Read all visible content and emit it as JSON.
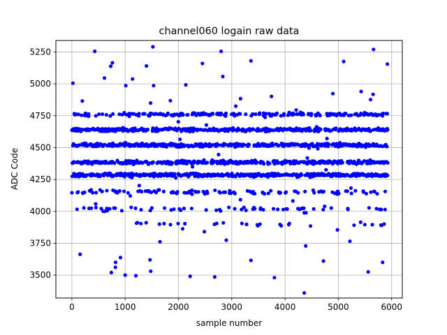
{
  "chart_data": {
    "type": "scatter",
    "title": "channel060 logain raw data",
    "xlabel": "sample number",
    "ylabel": "ADC Code",
    "xlim": [
      -300,
      6200
    ],
    "ylim": [
      3320,
      5340
    ],
    "x_ticks": [
      "0",
      "1000",
      "2000",
      "3000",
      "4000",
      "5000",
      "6000"
    ],
    "y_ticks": [
      "3500",
      "3750",
      "4000",
      "4250",
      "4500",
      "4750",
      "5000",
      "5250"
    ],
    "grid": true,
    "marker_color": "#0000ff",
    "series": [
      {
        "n_samples": 5930,
        "dense_bands": [
          4285,
          4385,
          4520,
          4640,
          4760
        ],
        "sparse_bands": [
          4150,
          4020,
          3900
        ],
        "highlighted_points": [
          {
            "x": 20,
            "y": 5005
          },
          {
            "x": 430,
            "y": 5255
          },
          {
            "x": 1520,
            "y": 5290
          },
          {
            "x": 2800,
            "y": 5255
          },
          {
            "x": 5660,
            "y": 5270
          },
          {
            "x": 5920,
            "y": 5155
          },
          {
            "x": 760,
            "y": 5165
          },
          {
            "x": 3360,
            "y": 5180
          },
          {
            "x": 5100,
            "y": 5175
          },
          {
            "x": 2450,
            "y": 5160
          },
          {
            "x": 1400,
            "y": 5140
          },
          {
            "x": 4360,
            "y": 3360
          },
          {
            "x": 1000,
            "y": 3500
          },
          {
            "x": 1200,
            "y": 3495
          },
          {
            "x": 2220,
            "y": 3490
          },
          {
            "x": 2680,
            "y": 3485
          },
          {
            "x": 3800,
            "y": 3480
          },
          {
            "x": 1480,
            "y": 3530
          },
          {
            "x": 5560,
            "y": 3525
          },
          {
            "x": 740,
            "y": 3520
          },
          {
            "x": 820,
            "y": 3600
          },
          {
            "x": 5830,
            "y": 3600
          },
          {
            "x": 4720,
            "y": 3610
          },
          {
            "x": 3360,
            "y": 3615
          }
        ]
      }
    ]
  }
}
